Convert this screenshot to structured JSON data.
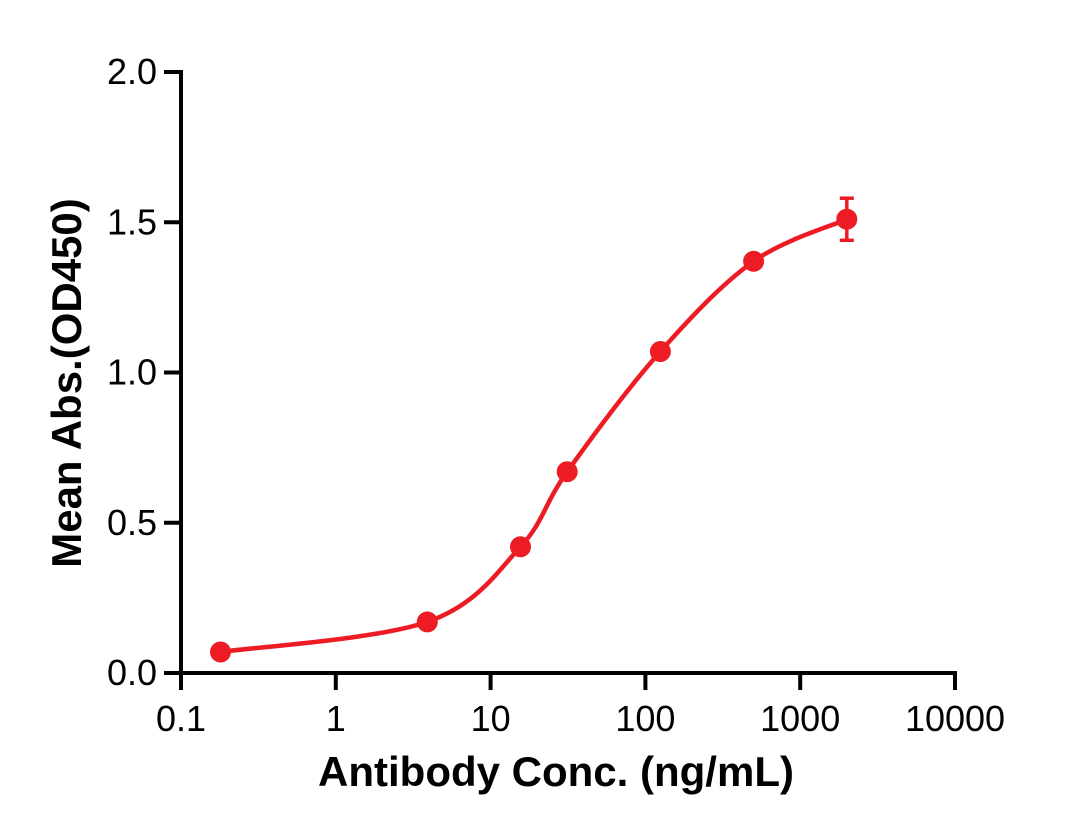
{
  "figure": {
    "background_color": "#FFFFFF",
    "axis_color": "#000000",
    "text_color": "#000000"
  },
  "chart_data": {
    "type": "scatter",
    "subtype": "dose-response-curve",
    "title": "",
    "xlabel": "Antibody Conc. (ng/mL)",
    "ylabel": "Mean Abs.(OD450)",
    "x_scale": "log10",
    "xlim": [
      0.1,
      10000
    ],
    "ylim": [
      0.0,
      2.0
    ],
    "x_ticks": [
      0.1,
      1,
      10,
      100,
      1000,
      10000
    ],
    "x_tick_labels": [
      "0.1",
      "1",
      "10",
      "100",
      "1000",
      "10000"
    ],
    "y_ticks": [
      0.0,
      0.5,
      1.0,
      1.5,
      2.0
    ],
    "y_tick_labels": [
      "0.0",
      "0.5",
      "1.0",
      "1.5",
      "2.0"
    ],
    "grid": false,
    "legend": false,
    "series": [
      {
        "color": "#ED1C24",
        "marker": "circle",
        "line": "smooth-sigmoid",
        "points": [
          {
            "x": 0.18,
            "y": 0.07
          },
          {
            "x": 3.9,
            "y": 0.17
          },
          {
            "x": 15.6,
            "y": 0.42
          },
          {
            "x": 31.25,
            "y": 0.67
          },
          {
            "x": 125,
            "y": 1.07
          },
          {
            "x": 500,
            "y": 1.37
          },
          {
            "x": 2000,
            "y": 1.51,
            "y_err": 0.07
          }
        ]
      }
    ]
  }
}
